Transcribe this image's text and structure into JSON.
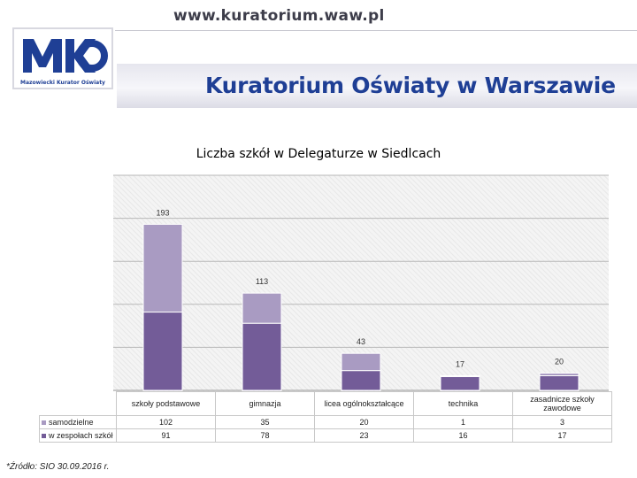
{
  "header": {
    "url": "www.kuratorium.waw.pl",
    "logo_caption": "Mazowiecki Kurator Oświaty",
    "banner_title": "Kuratorium Oświaty w Warszawie"
  },
  "colors": {
    "brand": "#1f3f95",
    "samodzielne": "#a99bc2",
    "w_zespolach": "#735c98"
  },
  "chart_data": {
    "type": "bar",
    "stacked": true,
    "title": "Liczba szkół w Delegaturze w Siedlcach",
    "categories": [
      "szkoły podstawowe",
      "gimnazja",
      "licea ogólnokształcące",
      "technika",
      "zasadnicze szkoły zawodowe"
    ],
    "series": [
      {
        "name": "w zespołach szkół",
        "values": [
          91,
          78,
          23,
          16,
          17
        ]
      },
      {
        "name": "samodzielne",
        "values": [
          102,
          35,
          20,
          1,
          3
        ]
      }
    ],
    "totals": [
      193,
      113,
      43,
      17,
      20
    ],
    "ylim": [
      0,
      250
    ],
    "grid": true,
    "legend": "data-table"
  },
  "source": "*Źródło: SIO 30.09.2016 r."
}
